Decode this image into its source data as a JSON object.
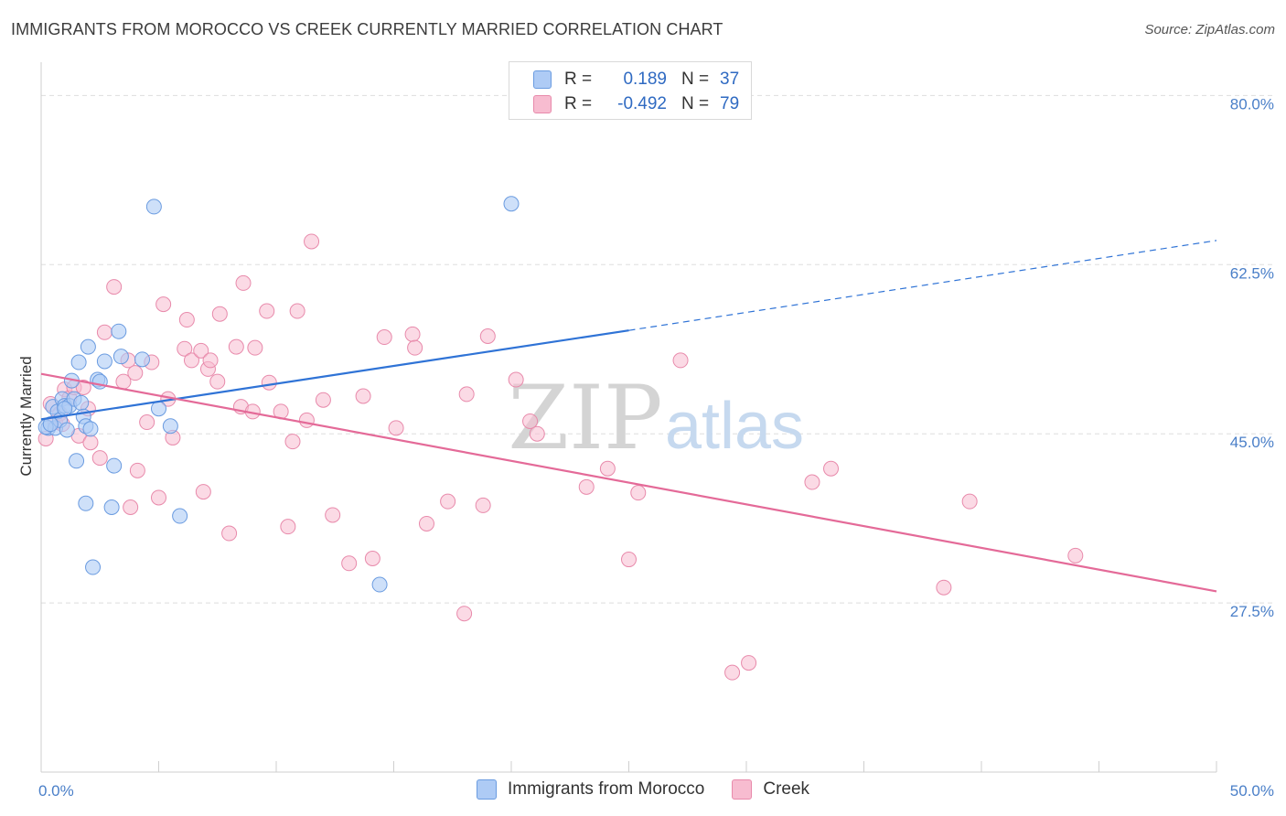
{
  "header": {
    "title": "IMMIGRANTS FROM MOROCCO VS CREEK CURRENTLY MARRIED CORRELATION CHART",
    "source": "Source: ZipAtlas.com"
  },
  "legend": {
    "rows": [
      {
        "r_label": "R =",
        "r_value": "0.189",
        "n_label": "N =",
        "n_value": "37"
      },
      {
        "r_label": "R =",
        "r_value": "-0.492",
        "n_label": "N =",
        "n_value": "79"
      }
    ]
  },
  "bottom_legend": {
    "series1": "Immigrants from Morocco",
    "series2": "Creek"
  },
  "colors": {
    "series1_fill": "#aecbf5",
    "series1_stroke": "#6a9be0",
    "series1_line": "#2f73d6",
    "series2_fill": "#f7bcd0",
    "series2_stroke": "#e88aab",
    "series2_line": "#e46a98",
    "grid": "#dddddd",
    "watermark": "#c8d8ea"
  },
  "watermark": {
    "zip": "ZIP",
    "atlas": "atlas"
  },
  "chart_data": {
    "type": "scatter",
    "title": "IMMIGRANTS FROM MOROCCO VS CREEK CURRENTLY MARRIED CORRELATION CHART",
    "xlabel": "",
    "ylabel": "Currently Married",
    "xlim": [
      0,
      50
    ],
    "ylim": [
      10,
      82.5
    ],
    "x_tick_labels": [
      "0.0%",
      "50.0%"
    ],
    "y_ticks": [
      27.5,
      45.0,
      62.5,
      80.0
    ],
    "y_tick_labels": [
      "27.5%",
      "45.0%",
      "62.5%",
      "80.0%"
    ],
    "grid": true,
    "series": [
      {
        "name": "Immigrants from Morocco",
        "r": 0.189,
        "n": 37,
        "trend": {
          "x0": 0,
          "y0": 46.5,
          "x1": 25,
          "y1": 55.7,
          "dash_x1": 50,
          "dash_y1": 65.0
        },
        "points": [
          [
            0.3,
            45.6
          ],
          [
            0.5,
            47.8
          ],
          [
            0.6,
            45.6
          ],
          [
            0.7,
            47.3
          ],
          [
            0.8,
            46.4
          ],
          [
            0.9,
            48.6
          ],
          [
            1.0,
            47.9
          ],
          [
            1.1,
            45.4
          ],
          [
            1.2,
            47.9
          ],
          [
            1.3,
            50.5
          ],
          [
            1.4,
            48.6
          ],
          [
            1.5,
            42.2
          ],
          [
            1.6,
            52.4
          ],
          [
            1.7,
            48.2
          ],
          [
            1.8,
            46.8
          ],
          [
            1.9,
            37.8
          ],
          [
            1.9,
            45.8
          ],
          [
            2.0,
            54.0
          ],
          [
            2.1,
            45.5
          ],
          [
            2.2,
            31.2
          ],
          [
            2.4,
            50.6
          ],
          [
            2.5,
            50.4
          ],
          [
            2.7,
            52.5
          ],
          [
            3.0,
            37.4
          ],
          [
            3.1,
            41.7
          ],
          [
            3.3,
            55.6
          ],
          [
            3.4,
            53.0
          ],
          [
            4.3,
            52.7
          ],
          [
            4.8,
            68.5
          ],
          [
            5.0,
            47.6
          ],
          [
            5.5,
            45.8
          ],
          [
            5.9,
            36.5
          ],
          [
            14.4,
            29.4
          ],
          [
            20.0,
            68.8
          ],
          [
            0.2,
            45.7
          ],
          [
            0.4,
            46.0
          ],
          [
            1.0,
            47.6
          ]
        ]
      },
      {
        "name": "Creek",
        "r": -0.492,
        "n": 79,
        "trend": {
          "x0": 0,
          "y0": 51.2,
          "x1": 50,
          "y1": 28.7
        },
        "points": [
          [
            0.2,
            44.5
          ],
          [
            0.4,
            48.1
          ],
          [
            0.6,
            46.2
          ],
          [
            0.8,
            47.1
          ],
          [
            0.9,
            46.0
          ],
          [
            1.0,
            49.6
          ],
          [
            1.2,
            48.7
          ],
          [
            1.4,
            49.8
          ],
          [
            1.6,
            44.8
          ],
          [
            1.8,
            49.8
          ],
          [
            2.0,
            47.6
          ],
          [
            2.1,
            44.1
          ],
          [
            2.5,
            42.5
          ],
          [
            2.7,
            55.5
          ],
          [
            3.1,
            60.2
          ],
          [
            3.5,
            50.4
          ],
          [
            3.7,
            52.6
          ],
          [
            3.8,
            37.4
          ],
          [
            4.0,
            51.3
          ],
          [
            4.1,
            41.2
          ],
          [
            4.5,
            46.2
          ],
          [
            4.7,
            52.4
          ],
          [
            5.0,
            38.4
          ],
          [
            5.2,
            58.4
          ],
          [
            5.4,
            48.6
          ],
          [
            5.6,
            44.6
          ],
          [
            6.1,
            53.8
          ],
          [
            6.2,
            56.8
          ],
          [
            6.4,
            52.6
          ],
          [
            6.8,
            53.6
          ],
          [
            6.9,
            39.0
          ],
          [
            7.1,
            51.7
          ],
          [
            7.2,
            52.6
          ],
          [
            7.5,
            50.4
          ],
          [
            7.6,
            57.4
          ],
          [
            8.0,
            34.7
          ],
          [
            8.3,
            54.0
          ],
          [
            8.5,
            47.8
          ],
          [
            8.6,
            60.6
          ],
          [
            9.0,
            47.3
          ],
          [
            9.1,
            53.9
          ],
          [
            9.6,
            57.7
          ],
          [
            9.7,
            50.3
          ],
          [
            10.2,
            47.3
          ],
          [
            10.5,
            35.4
          ],
          [
            10.7,
            44.2
          ],
          [
            10.9,
            57.7
          ],
          [
            11.3,
            46.4
          ],
          [
            11.5,
            64.9
          ],
          [
            12.0,
            48.5
          ],
          [
            12.4,
            36.6
          ],
          [
            13.1,
            31.6
          ],
          [
            13.7,
            48.9
          ],
          [
            14.1,
            32.1
          ],
          [
            14.6,
            55.0
          ],
          [
            15.1,
            45.6
          ],
          [
            15.8,
            55.3
          ],
          [
            15.9,
            53.9
          ],
          [
            16.4,
            35.7
          ],
          [
            17.3,
            38.0
          ],
          [
            18.0,
            26.4
          ],
          [
            18.1,
            49.1
          ],
          [
            18.8,
            37.6
          ],
          [
            19.0,
            55.1
          ],
          [
            20.2,
            50.6
          ],
          [
            20.8,
            46.3
          ],
          [
            21.1,
            45.0
          ],
          [
            23.2,
            39.5
          ],
          [
            24.1,
            41.4
          ],
          [
            25.0,
            32.0
          ],
          [
            25.4,
            38.9
          ],
          [
            27.2,
            52.6
          ],
          [
            29.4,
            20.3
          ],
          [
            30.1,
            21.3
          ],
          [
            32.8,
            40.0
          ],
          [
            33.6,
            41.4
          ],
          [
            38.4,
            29.1
          ],
          [
            39.5,
            38.0
          ],
          [
            44.0,
            32.4
          ]
        ]
      }
    ]
  }
}
